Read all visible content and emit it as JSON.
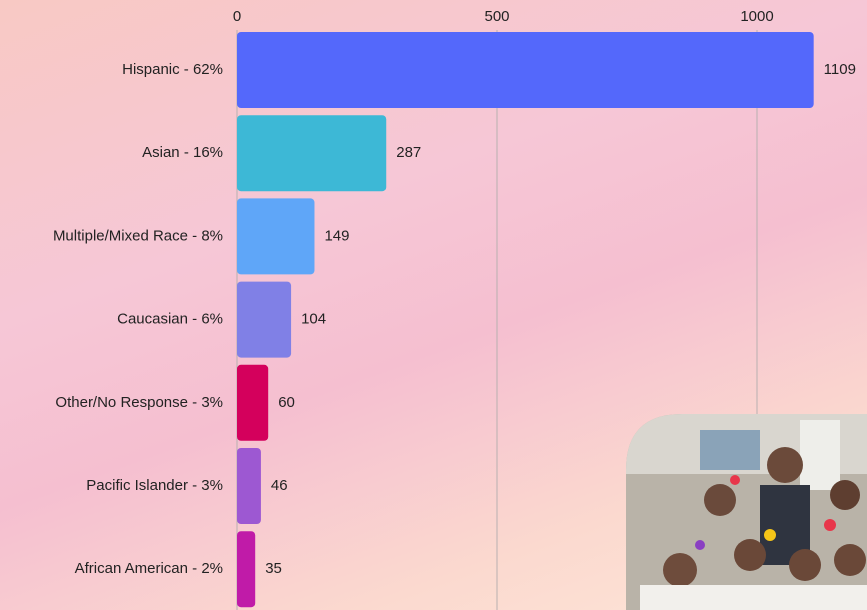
{
  "chart_data": {
    "type": "bar",
    "orientation": "horizontal",
    "categories": [
      "Hispanic - 62%",
      "Asian - 16%",
      "Multiple/Mixed Race - 8%",
      "Caucasian - 6%",
      "Other/No Response - 3%",
      "Pacific Islander - 3%",
      "African American - 2%"
    ],
    "values": [
      1109,
      287,
      149,
      104,
      60,
      46,
      35
    ],
    "colors": [
      "#5468fb",
      "#3db8d6",
      "#5fa6f8",
      "#8080e6",
      "#d4005c",
      "#9d58d2",
      "#c01ba8"
    ],
    "xlim": [
      0,
      1200
    ],
    "xticks": [
      0,
      500,
      1000
    ],
    "grid": true
  }
}
